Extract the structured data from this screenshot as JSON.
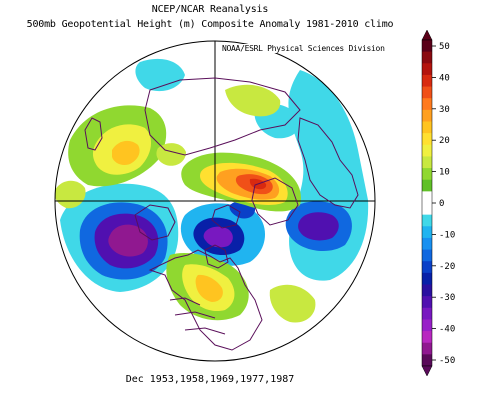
{
  "title": {
    "line1": "NCEP/NCAR Reanalysis",
    "line2": "500mb Geopotential Height (m) Composite Anomaly 1981-2010 climo"
  },
  "credit": "NOAA/ESRL Physical Sciences Division",
  "footer": "Dec 1953,1958,1969,1977,1987",
  "colorbar": {
    "tick_labels": [
      "50",
      "40",
      "30",
      "20",
      "10",
      "0",
      "-10",
      "-20",
      "-30",
      "-40",
      "-50"
    ],
    "colors": [
      "#5a0018",
      "#8a0a10",
      "#b4140e",
      "#d82a10",
      "#f05018",
      "#ff7a1e",
      "#ffa020",
      "#ffc420",
      "#ffe030",
      "#f0f040",
      "#c8e840",
      "#90d830",
      "#60c028",
      "#ffffff",
      "#ffffff",
      "#40d8e8",
      "#20b4f0",
      "#1890f0",
      "#1068e0",
      "#0a40c8",
      "#0820a8",
      "#2a10a0",
      "#5010b0",
      "#7818c0",
      "#9820c8",
      "#b828c0",
      "#901890",
      "#5a0a5a"
    ]
  },
  "map": {
    "projection": "north-polar-stereographic",
    "colors": {
      "coast": "#5a0f5a",
      "graticule": "#000000",
      "outline": "#000000"
    }
  }
}
